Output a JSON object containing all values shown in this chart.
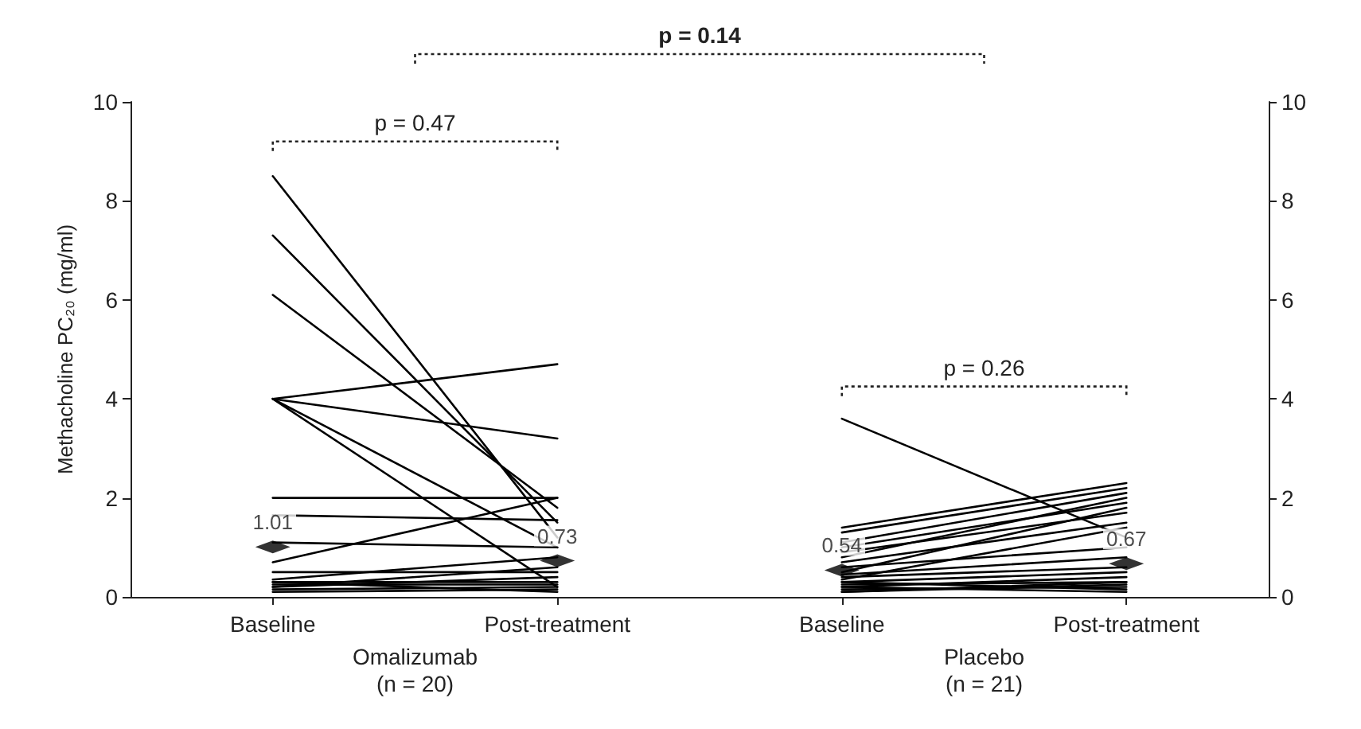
{
  "chart_data": {
    "type": "line",
    "ylabel": "Methacholine PC₂₀ (mg/ml)",
    "categories": [
      "Baseline",
      "Post-treatment",
      "Baseline",
      "Post-treatment"
    ],
    "ylim": [
      0,
      10
    ],
    "yticks": [
      0,
      2,
      4,
      6,
      8,
      10
    ],
    "y2lim": [
      0,
      10
    ],
    "y2ticks": [
      0,
      2,
      4,
      6,
      8,
      10
    ],
    "grid": false,
    "line_style": "solid",
    "annotations": [
      "Omalizumab\n(n = 20)",
      "Placebo\n(n = 21)",
      "p = 0.47",
      "p = 0.26",
      "p = 0.14"
    ],
    "series": [
      {
        "color": "#000000",
        "values": [
          8.5,
          1.2,
          null,
          null
        ]
      },
      {
        "color": "#000000",
        "values": [
          7.3,
          1.5,
          null,
          null
        ]
      },
      {
        "color": "#000000",
        "values": [
          6.1,
          1.8,
          null,
          null
        ]
      },
      {
        "color": "#000000",
        "values": [
          4.0,
          4.7,
          null,
          null
        ]
      },
      {
        "color": "#000000",
        "values": [
          4.0,
          3.2,
          null,
          null
        ]
      },
      {
        "color": "#000000",
        "values": [
          4.0,
          1.0,
          null,
          null
        ]
      },
      {
        "color": "#000000",
        "values": [
          4.0,
          0.2,
          null,
          null
        ]
      },
      {
        "color": "#000000",
        "values": [
          2.0,
          2.0,
          null,
          null
        ]
      },
      {
        "color": "#000000",
        "values": [
          1.65,
          1.55,
          null,
          null
        ]
      },
      {
        "color": "#000000",
        "values": [
          1.1,
          1.0,
          null,
          null
        ]
      },
      {
        "color": "#000000",
        "values": [
          0.7,
          2.0,
          null,
          null
        ]
      },
      {
        "color": "#000000",
        "values": [
          0.5,
          0.5,
          null,
          null
        ]
      },
      {
        "color": "#000000",
        "values": [
          0.35,
          0.8,
          null,
          null
        ]
      },
      {
        "color": "#000000",
        "values": [
          0.3,
          0.3,
          null,
          null
        ]
      },
      {
        "color": "#000000",
        "values": [
          0.25,
          0.25,
          null,
          null
        ]
      },
      {
        "color": "#000000",
        "values": [
          0.2,
          0.4,
          null,
          null
        ]
      },
      {
        "color": "#000000",
        "values": [
          0.15,
          0.2,
          null,
          null
        ]
      },
      {
        "color": "#000000",
        "values": [
          0.1,
          0.15,
          null,
          null
        ]
      },
      {
        "color": "#000000",
        "values": [
          0.3,
          0.1,
          null,
          null
        ]
      },
      {
        "color": "#000000",
        "values": [
          0.2,
          0.6,
          null,
          null
        ]
      },
      {
        "color": "#000000",
        "values": [
          null,
          null,
          3.6,
          1.2
        ]
      },
      {
        "color": "#000000",
        "values": [
          null,
          null,
          1.4,
          2.3
        ]
      },
      {
        "color": "#000000",
        "values": [
          null,
          null,
          1.3,
          2.2
        ]
      },
      {
        "color": "#000000",
        "values": [
          null,
          null,
          1.1,
          2.1
        ]
      },
      {
        "color": "#000000",
        "values": [
          null,
          null,
          1.0,
          1.9
        ]
      },
      {
        "color": "#000000",
        "values": [
          null,
          null,
          0.9,
          1.7
        ]
      },
      {
        "color": "#000000",
        "values": [
          null,
          null,
          0.8,
          2.0
        ]
      },
      {
        "color": "#000000",
        "values": [
          null,
          null,
          0.7,
          1.5
        ]
      },
      {
        "color": "#000000",
        "values": [
          null,
          null,
          0.6,
          1.0
        ]
      },
      {
        "color": "#000000",
        "values": [
          null,
          null,
          0.5,
          1.8
        ]
      },
      {
        "color": "#000000",
        "values": [
          null,
          null,
          0.45,
          0.8
        ]
      },
      {
        "color": "#000000",
        "values": [
          null,
          null,
          0.4,
          0.6
        ]
      },
      {
        "color": "#000000",
        "values": [
          null,
          null,
          0.35,
          1.4
        ]
      },
      {
        "color": "#000000",
        "values": [
          null,
          null,
          0.3,
          0.5
        ]
      },
      {
        "color": "#000000",
        "values": [
          null,
          null,
          0.25,
          0.3
        ]
      },
      {
        "color": "#000000",
        "values": [
          null,
          null,
          0.2,
          0.4
        ]
      },
      {
        "color": "#000000",
        "values": [
          null,
          null,
          0.15,
          0.2
        ]
      },
      {
        "color": "#000000",
        "values": [
          null,
          null,
          0.1,
          0.25
        ]
      },
      {
        "color": "#000000",
        "values": [
          null,
          null,
          0.3,
          0.15
        ]
      },
      {
        "color": "#000000",
        "values": [
          null,
          null,
          0.2,
          0.1
        ]
      },
      {
        "color": "#000000",
        "values": [
          null,
          null,
          0.1,
          0.3
        ]
      },
      {
        "type": "scatter",
        "marker": "diamond",
        "color": "#000000",
        "values": [
          1.01,
          0.73,
          0.54,
          0.67
        ],
        "value_labels": [
          "1.01",
          "0.73",
          "0.54",
          "0.67"
        ]
      }
    ]
  }
}
